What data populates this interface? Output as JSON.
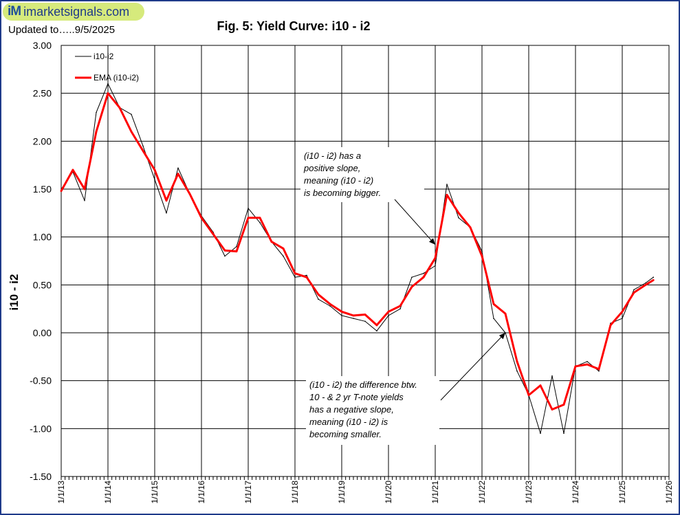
{
  "brand": {
    "logo_mark": "iM",
    "name": "imarketsignals.com"
  },
  "updated": "Updated to…..9/5/2025",
  "chart_data": {
    "type": "line",
    "title": "Fig. 5:  Yield Curve:   i10 - i2",
    "ylabel": "i10 - i2",
    "xlabel": "",
    "ylim": [
      -1.5,
      3.0
    ],
    "yticks": [
      "3.00",
      "2.50",
      "2.00",
      "1.50",
      "1.00",
      "0.50",
      "0.00",
      "-0.50",
      "-1.00",
      "-1.50"
    ],
    "xticks": [
      "1/1/13",
      "1/1/14",
      "1/1/15",
      "1/1/16",
      "1/1/17",
      "1/1/18",
      "1/1/19",
      "1/1/20",
      "1/1/21",
      "1/1/22",
      "1/1/23",
      "1/1/24",
      "1/1/25",
      "1/1/26"
    ],
    "grid": true,
    "legend_placement": "top-left",
    "series": [
      {
        "name": "i10-i2",
        "color": "#000000",
        "x": [
          "2013-01",
          "2013-04",
          "2013-07",
          "2013-10",
          "2014-01",
          "2014-04",
          "2014-07",
          "2014-10",
          "2015-01",
          "2015-04",
          "2015-07",
          "2015-10",
          "2016-01",
          "2016-04",
          "2016-07",
          "2016-10",
          "2017-01",
          "2017-04",
          "2017-07",
          "2017-10",
          "2018-01",
          "2018-04",
          "2018-07",
          "2018-10",
          "2019-01",
          "2019-04",
          "2019-07",
          "2019-10",
          "2020-01",
          "2020-04",
          "2020-07",
          "2020-10",
          "2021-01",
          "2021-04",
          "2021-07",
          "2021-10",
          "2022-01",
          "2022-04",
          "2022-07",
          "2022-10",
          "2023-01",
          "2023-04",
          "2023-07",
          "2023-10",
          "2024-01",
          "2024-04",
          "2024-07",
          "2024-10",
          "2025-01",
          "2025-04",
          "2025-07",
          "2025-09"
        ],
        "values": [
          1.5,
          1.68,
          1.38,
          2.3,
          2.6,
          2.35,
          2.28,
          1.95,
          1.6,
          1.25,
          1.72,
          1.45,
          1.22,
          1.05,
          0.8,
          0.9,
          1.3,
          1.15,
          0.95,
          0.8,
          0.58,
          0.6,
          0.35,
          0.28,
          0.18,
          0.15,
          0.12,
          0.02,
          0.18,
          0.25,
          0.58,
          0.62,
          0.7,
          1.55,
          1.2,
          1.1,
          0.85,
          0.15,
          0.0,
          -0.4,
          -0.65,
          -1.05,
          -0.45,
          -1.05,
          -0.35,
          -0.3,
          -0.4,
          0.1,
          0.15,
          0.45,
          0.52,
          0.58
        ]
      },
      {
        "name": "EMA (i10-i2)",
        "color": "#ff0000",
        "x": [
          "2013-01",
          "2013-04",
          "2013-07",
          "2013-10",
          "2014-01",
          "2014-04",
          "2014-07",
          "2014-10",
          "2015-01",
          "2015-04",
          "2015-07",
          "2015-10",
          "2016-01",
          "2016-04",
          "2016-07",
          "2016-10",
          "2017-01",
          "2017-04",
          "2017-07",
          "2017-10",
          "2018-01",
          "2018-04",
          "2018-07",
          "2018-10",
          "2019-01",
          "2019-04",
          "2019-07",
          "2019-10",
          "2020-01",
          "2020-04",
          "2020-07",
          "2020-10",
          "2021-01",
          "2021-04",
          "2021-07",
          "2021-10",
          "2022-01",
          "2022-04",
          "2022-07",
          "2022-10",
          "2023-01",
          "2023-04",
          "2023-07",
          "2023-10",
          "2024-01",
          "2024-04",
          "2024-07",
          "2024-10",
          "2025-01",
          "2025-04",
          "2025-07",
          "2025-09"
        ],
        "values": [
          1.48,
          1.7,
          1.5,
          2.1,
          2.5,
          2.35,
          2.1,
          1.9,
          1.7,
          1.38,
          1.66,
          1.45,
          1.2,
          1.03,
          0.86,
          0.85,
          1.2,
          1.2,
          0.95,
          0.88,
          0.62,
          0.58,
          0.4,
          0.3,
          0.22,
          0.18,
          0.19,
          0.08,
          0.22,
          0.28,
          0.48,
          0.58,
          0.78,
          1.44,
          1.25,
          1.1,
          0.8,
          0.3,
          0.2,
          -0.3,
          -0.65,
          -0.55,
          -0.8,
          -0.75,
          -0.35,
          -0.33,
          -0.38,
          0.08,
          0.22,
          0.42,
          0.5,
          0.55
        ]
      }
    ],
    "annotations": [
      {
        "lines": [
          "(i10 - i2)   has a",
          "positive slope,",
          "meaning  (i10 - i2)",
          "is becoming  bigger."
        ],
        "target_x": "2021-01",
        "target_y": 0.92
      },
      {
        "lines": [
          "(i10 - i2) the difference  btw.",
          "10 - & 2 yr T-note yields",
          "has a negative slope,",
          "meaning  (i10 - i2) is",
          "becoming  smaller."
        ],
        "target_x": "2022-07",
        "target_y": 0.0
      }
    ]
  }
}
